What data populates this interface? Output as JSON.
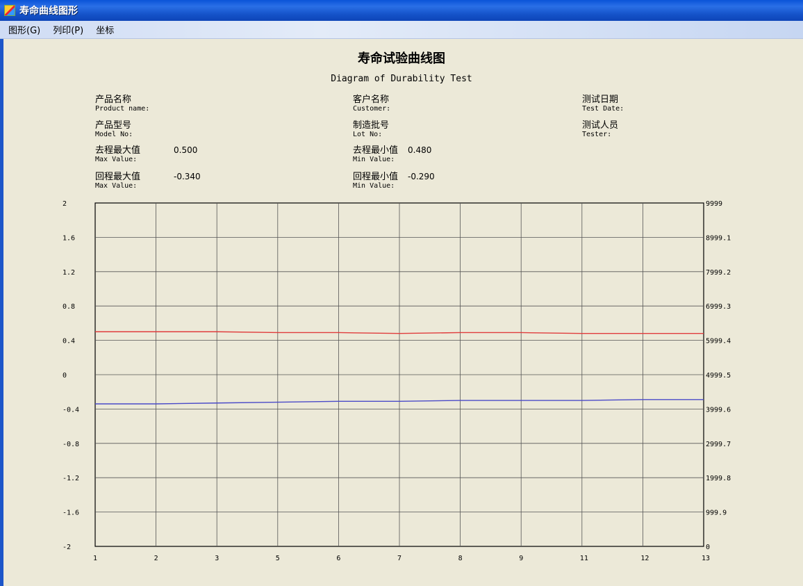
{
  "window": {
    "title": "寿命曲线图形",
    "icon": "app-icon"
  },
  "menu": [
    {
      "label": "图形(G)"
    },
    {
      "label": "列印(P)"
    },
    {
      "label": "坐标"
    }
  ],
  "header": {
    "title": "寿命试验曲线图",
    "subtitle": "Diagram of Durability Test"
  },
  "info": {
    "product_name": {
      "zh": "产品名称",
      "en": "Product name:"
    },
    "model_no": {
      "zh": "产品型号",
      "en": "Model No:"
    },
    "forward_max": {
      "zh": "去程最大值",
      "en": "Max Value:",
      "value": "0.500"
    },
    "return_max": {
      "zh": "回程最大值",
      "en": "Max Value:",
      "value": "-0.340"
    },
    "customer": {
      "zh": "客户名称",
      "en": "Customer:"
    },
    "lot_no": {
      "zh": "制造批号",
      "en": "Lot No:"
    },
    "forward_min": {
      "zh": "去程最小值",
      "en": "Min Value:",
      "value": "0.480"
    },
    "return_min": {
      "zh": "回程最小值",
      "en": "Min Value:",
      "value": "-0.290"
    },
    "test_date": {
      "zh": "测试日期",
      "en": "Test Date:"
    },
    "tester": {
      "zh": "测试人员",
      "en": "Tester:"
    }
  },
  "chart_data": {
    "type": "line",
    "x_ticks": [
      "1",
      "2",
      "3",
      "5",
      "6",
      "7",
      "8",
      "9",
      "11",
      "12",
      "13"
    ],
    "y_left_ticks": [
      "2",
      "1.6",
      "1.2",
      "0.8",
      "0.4",
      "0",
      "-0.4",
      "-0.8",
      "-1.2",
      "-1.6",
      "-2"
    ],
    "y_right_ticks": [
      "9999",
      "8999.1",
      "7999.2",
      "6999.3",
      "5999.4",
      "4999.5",
      "3999.6",
      "2999.7",
      "1999.8",
      "999.9",
      "0"
    ],
    "ylim": [
      -2,
      2
    ],
    "y2lim": [
      0,
      9999
    ],
    "grid": true,
    "series": [
      {
        "color": "#e03c3c",
        "values": [
          0.5,
          0.5,
          0.5,
          0.49,
          0.49,
          0.48,
          0.49,
          0.49,
          0.48,
          0.48,
          0.48
        ]
      },
      {
        "color": "#4a4ac8",
        "values": [
          -0.34,
          -0.34,
          -0.33,
          -0.32,
          -0.31,
          -0.31,
          -0.3,
          -0.3,
          -0.3,
          -0.29,
          -0.29
        ]
      }
    ]
  }
}
